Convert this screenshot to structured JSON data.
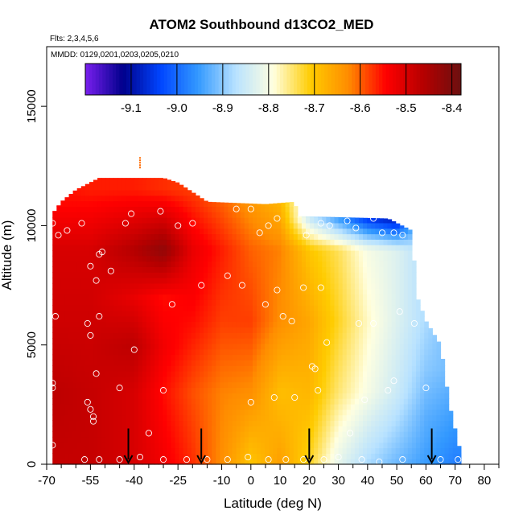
{
  "chart_data": {
    "type": "heatmap",
    "title": "ATOM2 Southbound d13CO2_MED",
    "subtitle_flights": "Flts: 2,3,4,5,6",
    "subtitle_dates": "MMDD: 0129,0201,0203,0205,0210",
    "xlabel": "Latitude (deg N)",
    "ylabel": "Altitude (m)",
    "xlim": [
      -70,
      85
    ],
    "ylim": [
      0,
      17500
    ],
    "x_ticks": [
      -70,
      -55,
      -40,
      -25,
      -10,
      0,
      10,
      20,
      30,
      40,
      50,
      60,
      70,
      80
    ],
    "x_tick_labels": [
      "-70",
      "-55",
      "-40",
      "-25",
      "-10",
      "0",
      "10",
      "20",
      "30",
      "40",
      "50",
      "60",
      "70",
      "80"
    ],
    "x_minor_ticks": [
      -65,
      -60,
      -50,
      -45,
      -35,
      -30,
      -20,
      -15,
      -5,
      5,
      15,
      25,
      35,
      45,
      55,
      65,
      75,
      85
    ],
    "y_ticks": [
      0,
      5000,
      10000,
      15000
    ],
    "y_tick_labels": [
      "0",
      "5000",
      "10000",
      "15000"
    ],
    "colorbar": {
      "min": -9.2,
      "max": -8.38,
      "ticks": [
        -9.1,
        -9.0,
        -8.9,
        -8.8,
        -8.7,
        -8.6,
        -8.5,
        -8.4
      ],
      "tick_labels": [
        "-9.1",
        "-9.0",
        "-8.9",
        "-8.8",
        "-8.7",
        "-8.6",
        "-8.5",
        "-8.4"
      ],
      "colors": [
        "#7a1fef",
        "#00008b",
        "#0045ff",
        "#3399ff",
        "#b8e2ff",
        "#ffffe0",
        "#ffcc00",
        "#ff8c00",
        "#ff0000",
        "#b50000",
        "#6b1010"
      ]
    },
    "coverage": [
      {
        "lat": -68,
        "top": 10500
      },
      {
        "lat": -65,
        "top": 11000
      },
      {
        "lat": -60,
        "top": 11500
      },
      {
        "lat": -52,
        "top": 12000
      },
      {
        "lat": -30,
        "top": 12000
      },
      {
        "lat": -25,
        "top": 11800
      },
      {
        "lat": -15,
        "top": 11000
      },
      {
        "lat": 5,
        "top": 10900
      },
      {
        "lat": 15,
        "top": 11000
      },
      {
        "lat": 16,
        "top": 10400
      },
      {
        "lat": 47,
        "top": 10300
      },
      {
        "lat": 55,
        "top": 9800
      },
      {
        "lat": 57,
        "top": 7000
      },
      {
        "lat": 60,
        "top": 6000
      },
      {
        "lat": 65,
        "top": 5000
      },
      {
        "lat": 68,
        "top": 2500
      },
      {
        "lat": 72,
        "top": 400
      }
    ],
    "field_anchors": [
      {
        "lat": -68,
        "alts": [
          0,
          3000,
          6000,
          9000,
          11000
        ],
        "values": [
          -8.48,
          -8.47,
          -8.49,
          -8.5,
          -8.55
        ]
      },
      {
        "lat": -55,
        "alts": [
          0,
          3000,
          6000,
          9000,
          11500
        ],
        "values": [
          -8.48,
          -8.48,
          -8.49,
          -8.5,
          -8.56
        ]
      },
      {
        "lat": -40,
        "alts": [
          0,
          3000,
          5000,
          7000,
          9000,
          11500
        ],
        "values": [
          -8.5,
          -8.5,
          -8.47,
          -8.52,
          -8.46,
          -8.56
        ]
      },
      {
        "lat": -30,
        "alts": [
          0,
          3000,
          5000,
          7000,
          9000,
          11500
        ],
        "values": [
          -8.53,
          -8.55,
          -8.53,
          -8.55,
          -8.42,
          -8.57
        ]
      },
      {
        "lat": -20,
        "alts": [
          0,
          3000,
          6000,
          9000,
          11500
        ],
        "values": [
          -8.57,
          -8.59,
          -8.55,
          -8.52,
          -8.58
        ]
      },
      {
        "lat": -10,
        "alts": [
          0,
          3000,
          6000,
          9000,
          11000
        ],
        "values": [
          -8.63,
          -8.62,
          -8.58,
          -8.56,
          -8.6
        ]
      },
      {
        "lat": 0,
        "alts": [
          0,
          3000,
          6000,
          9000,
          11000
        ],
        "values": [
          -8.7,
          -8.63,
          -8.58,
          -8.6,
          -8.64
        ]
      },
      {
        "lat": 10,
        "alts": [
          0,
          3000,
          6000,
          9000,
          11000
        ],
        "values": [
          -8.65,
          -8.69,
          -8.63,
          -8.62,
          -8.68
        ]
      },
      {
        "lat": 20,
        "alts": [
          0,
          3000,
          6000,
          9000,
          10300
        ],
        "values": [
          -8.72,
          -8.68,
          -8.66,
          -8.7,
          -8.85
        ]
      },
      {
        "lat": 30,
        "alts": [
          0,
          3000,
          6000,
          9000,
          10300
        ],
        "values": [
          -8.82,
          -8.75,
          -8.72,
          -8.74,
          -8.95
        ]
      },
      {
        "lat": 40,
        "alts": [
          0,
          3000,
          6000,
          9000,
          10300
        ],
        "values": [
          -8.88,
          -8.8,
          -8.78,
          -8.8,
          -9.05
        ]
      },
      {
        "lat": 50,
        "alts": [
          0,
          3000,
          6000,
          9000,
          10300
        ],
        "values": [
          -8.92,
          -8.85,
          -8.83,
          -8.83,
          -9.1
        ]
      },
      {
        "lat": 60,
        "alts": [
          0,
          2000,
          4000,
          6000
        ],
        "values": [
          -8.95,
          -8.93,
          -8.9,
          -8.88
        ]
      },
      {
        "lat": 70,
        "alts": [
          0,
          2000,
          4000
        ],
        "values": [
          -8.98,
          -8.95,
          -8.92
        ]
      }
    ],
    "samples": [
      {
        "lat": -68,
        "alt": 10100
      },
      {
        "lat": -66,
        "alt": 9600
      },
      {
        "lat": -63,
        "alt": 9800
      },
      {
        "lat": -58,
        "alt": 10100
      },
      {
        "lat": -55,
        "alt": 8300
      },
      {
        "lat": -52,
        "alt": 8800
      },
      {
        "lat": -53,
        "alt": 7700
      },
      {
        "lat": -51,
        "alt": 8900
      },
      {
        "lat": -48,
        "alt": 8100
      },
      {
        "lat": -56,
        "alt": 5900
      },
      {
        "lat": -52,
        "alt": 6200
      },
      {
        "lat": -67,
        "alt": 6200
      },
      {
        "lat": -55,
        "alt": 5400
      },
      {
        "lat": -53,
        "alt": 3800
      },
      {
        "lat": -68,
        "alt": 3400
      },
      {
        "lat": -68,
        "alt": 3200
      },
      {
        "lat": -56,
        "alt": 2600
      },
      {
        "lat": -55,
        "alt": 2300
      },
      {
        "lat": -54,
        "alt": 2000
      },
      {
        "lat": -54,
        "alt": 1800
      },
      {
        "lat": -68,
        "alt": 800
      },
      {
        "lat": -57,
        "alt": 200
      },
      {
        "lat": -52,
        "alt": 200
      },
      {
        "lat": -45,
        "alt": 3200
      },
      {
        "lat": -40,
        "alt": 4800
      },
      {
        "lat": -43,
        "alt": 10100
      },
      {
        "lat": -41,
        "alt": 10500
      },
      {
        "lat": -31,
        "alt": 10600
      },
      {
        "lat": -25,
        "alt": 10000
      },
      {
        "lat": -20,
        "alt": 10100
      },
      {
        "lat": -13,
        "alt": 11900
      },
      {
        "lat": -17,
        "alt": 7500
      },
      {
        "lat": -27,
        "alt": 6700
      },
      {
        "lat": -30,
        "alt": 3100
      },
      {
        "lat": -35,
        "alt": 1300
      },
      {
        "lat": -38,
        "alt": 300
      },
      {
        "lat": -45,
        "alt": 200
      },
      {
        "lat": -30,
        "alt": 200
      },
      {
        "lat": -22,
        "alt": 200
      },
      {
        "lat": -5,
        "alt": 10700
      },
      {
        "lat": 0,
        "alt": 10700
      },
      {
        "lat": 3,
        "alt": 9700
      },
      {
        "lat": 6,
        "alt": 10000
      },
      {
        "lat": 9,
        "alt": 10300
      },
      {
        "lat": -3,
        "alt": 7500
      },
      {
        "lat": -8,
        "alt": 7900
      },
      {
        "lat": 5,
        "alt": 6700
      },
      {
        "lat": 9,
        "alt": 7300
      },
      {
        "lat": 11,
        "alt": 6200
      },
      {
        "lat": 14,
        "alt": 6000
      },
      {
        "lat": 18,
        "alt": 7400
      },
      {
        "lat": 24,
        "alt": 7400
      },
      {
        "lat": 19,
        "alt": 9600
      },
      {
        "lat": 24,
        "alt": 10100
      },
      {
        "lat": 27,
        "alt": 10000
      },
      {
        "lat": 33,
        "alt": 10200
      },
      {
        "lat": 36,
        "alt": 9900
      },
      {
        "lat": 42,
        "alt": 10300
      },
      {
        "lat": 45,
        "alt": 9700
      },
      {
        "lat": 49,
        "alt": 9700
      },
      {
        "lat": 52,
        "alt": 9600
      },
      {
        "lat": 57,
        "alt": 9700
      },
      {
        "lat": 26,
        "alt": 5100
      },
      {
        "lat": 21,
        "alt": 4100
      },
      {
        "lat": 22,
        "alt": 4000
      },
      {
        "lat": 37,
        "alt": 5900
      },
      {
        "lat": 42,
        "alt": 5900
      },
      {
        "lat": 51,
        "alt": 6400
      },
      {
        "lat": 56,
        "alt": 5900
      },
      {
        "lat": 49,
        "alt": 3500
      },
      {
        "lat": 47,
        "alt": 3100
      },
      {
        "lat": 39,
        "alt": 2700
      },
      {
        "lat": 23,
        "alt": 3100
      },
      {
        "lat": 15,
        "alt": 2800
      },
      {
        "lat": 8,
        "alt": 2800
      },
      {
        "lat": 0,
        "alt": 2600
      },
      {
        "lat": 34,
        "alt": 1300
      },
      {
        "lat": 60,
        "alt": 3200
      },
      {
        "lat": -15,
        "alt": 200
      },
      {
        "lat": -8,
        "alt": 200
      },
      {
        "lat": -1,
        "alt": 300
      },
      {
        "lat": 6,
        "alt": 200
      },
      {
        "lat": 12,
        "alt": 200
      },
      {
        "lat": 18,
        "alt": 200
      },
      {
        "lat": 25,
        "alt": 200
      },
      {
        "lat": 30,
        "alt": 300
      },
      {
        "lat": 38,
        "alt": 200
      },
      {
        "lat": 44,
        "alt": 100
      },
      {
        "lat": 52,
        "alt": 200
      },
      {
        "lat": 65,
        "alt": 200
      },
      {
        "lat": 71,
        "alt": 200
      }
    ],
    "arrows": [
      {
        "lat": -42,
        "alt": 500
      },
      {
        "lat": -17,
        "alt": 500
      },
      {
        "lat": 20,
        "alt": 500
      },
      {
        "lat": 62,
        "alt": 500
      }
    ],
    "marker": {
      "lat": -38,
      "alt": 12400
    }
  }
}
